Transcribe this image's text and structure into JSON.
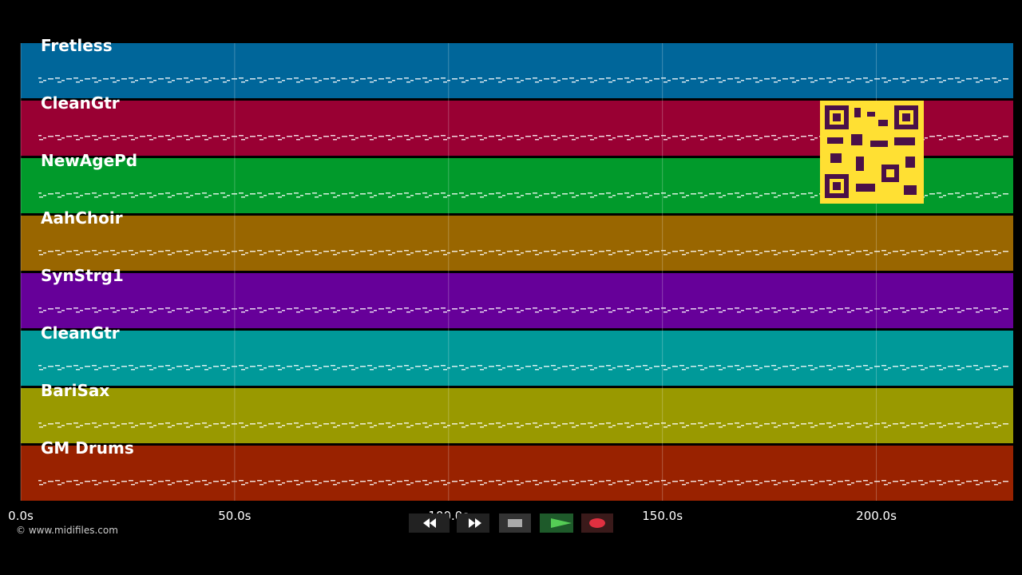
{
  "tracks": [
    {
      "name": "Fretless",
      "color": "#00669a"
    },
    {
      "name": "CleanGtr",
      "color": "#990033"
    },
    {
      "name": "NewAgePd",
      "color": "#019a2b"
    },
    {
      "name": "AahChoir",
      "color": "#996600"
    },
    {
      "name": "SynStrg1",
      "color": "#660099"
    },
    {
      "name": "CleanGtr",
      "color": "#009999"
    },
    {
      "name": "BariSax",
      "color": "#999900"
    },
    {
      "name": "GM Drums",
      "color": "#992200"
    }
  ],
  "timeline": {
    "xlim": [
      0,
      232
    ],
    "xticks": [
      {
        "value": 0,
        "label": "0.0s"
      },
      {
        "value": 50,
        "label": "50.0s"
      },
      {
        "value": 100,
        "label": "100.0s"
      },
      {
        "value": 150,
        "label": "150.0s"
      },
      {
        "value": 200,
        "label": "200.0s"
      }
    ]
  },
  "footer": {
    "copyright": "© www.midifiles.com"
  }
}
